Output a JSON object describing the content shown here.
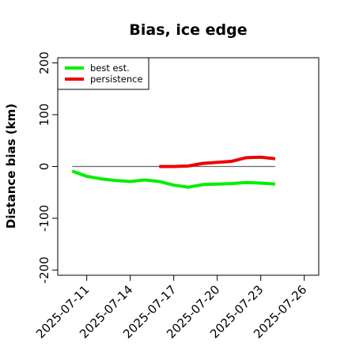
{
  "chart_data": {
    "type": "line",
    "title": "Bias, ice edge",
    "xlabel": "",
    "ylabel": "Distance bias (km)",
    "xlim": [
      "2025-07-09",
      "2025-07-27"
    ],
    "ylim": [
      -210,
      210
    ],
    "x_ticks": [
      "2025-07-11",
      "2025-07-14",
      "2025-07-17",
      "2025-07-20",
      "2025-07-23",
      "2025-07-26"
    ],
    "y_ticks": [
      -200,
      -100,
      0,
      100,
      200
    ],
    "y_tick_labels": [
      "-200",
      "-100",
      "0",
      "100",
      "200"
    ],
    "reference_line": {
      "y": 0,
      "from": "2025-07-10",
      "to": "2025-07-24",
      "color": "#666666"
    },
    "legend_position": "top-left",
    "series": [
      {
        "name": "best est.",
        "color": "#00ee00",
        "points": [
          [
            "2025-07-10",
            -9
          ],
          [
            "2025-07-11",
            -19
          ],
          [
            "2025-07-12",
            -24
          ],
          [
            "2025-07-13",
            -27
          ],
          [
            "2025-07-14",
            -29
          ],
          [
            "2025-07-15",
            -26
          ],
          [
            "2025-07-16",
            -29
          ],
          [
            "2025-07-17",
            -36
          ],
          [
            "2025-07-18",
            -40
          ],
          [
            "2025-07-19",
            -35
          ],
          [
            "2025-07-20",
            -34
          ],
          [
            "2025-07-21",
            -33
          ],
          [
            "2025-07-22",
            -31
          ],
          [
            "2025-07-23",
            -32
          ],
          [
            "2025-07-24",
            -34
          ]
        ]
      },
      {
        "name": "persistence",
        "color": "#ee0000",
        "points": [
          [
            "2025-07-16",
            0
          ],
          [
            "2025-07-17",
            0
          ],
          [
            "2025-07-18",
            1
          ],
          [
            "2025-07-19",
            6
          ],
          [
            "2025-07-20",
            8
          ],
          [
            "2025-07-21",
            10
          ],
          [
            "2025-07-22",
            17
          ],
          [
            "2025-07-23",
            18
          ],
          [
            "2025-07-24",
            15
          ]
        ]
      }
    ]
  }
}
